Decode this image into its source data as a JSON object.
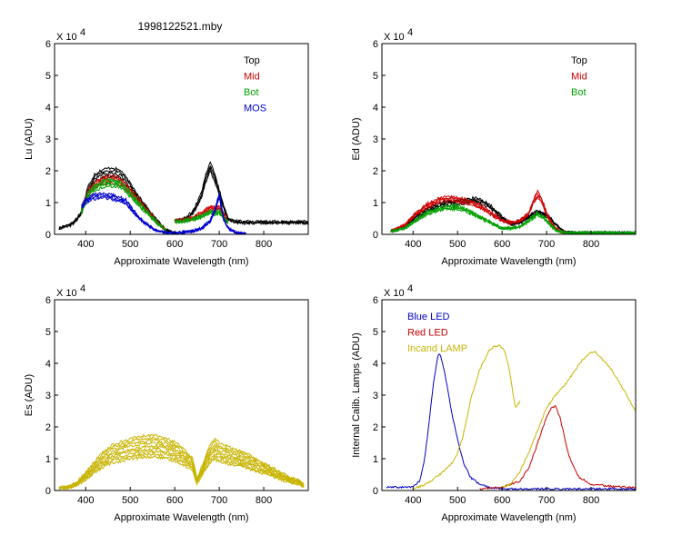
{
  "figure_title": "1998122521.mby",
  "colors": {
    "top": "#000000",
    "mid": "#d00000",
    "bot": "#00a000",
    "mos": "#0000d0",
    "blue_led": "#0000c8",
    "red_led": "#c80000",
    "lamp": "#c8b400"
  },
  "chart_data": [
    {
      "type": "line",
      "id": "lu",
      "ylabel": "Lu (ADU)",
      "xlabel": "Approximate Wavelength (nm)",
      "xlim": [
        330,
        900
      ],
      "ylim": [
        0,
        6
      ],
      "multiplier_base": "X 10",
      "multiplier_exp": "4",
      "xticks": [
        "400",
        "500",
        "600",
        "700",
        "800"
      ],
      "yticks": [
        "0",
        "1",
        "2",
        "3",
        "4",
        "5",
        "6"
      ],
      "legend": [
        {
          "label": "Top",
          "color": "#000000"
        },
        {
          "label": "Mid",
          "color": "#d00000"
        },
        {
          "label": "Bot",
          "color": "#00a000"
        },
        {
          "label": "MOS",
          "color": "#0000d0"
        }
      ],
      "series": [
        {
          "name": "Top",
          "color": "#000000",
          "segments": [
            {
              "x": [
                340,
                370,
                390,
                405,
                420,
                440,
                460,
                480,
                500,
                520,
                540,
                560,
                580,
                600
              ],
              "y": [
                0.2,
                0.35,
                0.7,
                1.5,
                1.9,
                2.05,
                2.1,
                2.0,
                1.6,
                1.2,
                0.8,
                0.45,
                0.15,
                0.05
              ]
            },
            {
              "x": [
                600,
                620,
                640,
                660,
                670,
                680,
                690,
                700,
                710,
                720,
                740,
                760,
                800,
                850,
                900
              ],
              "y": [
                0.45,
                0.5,
                0.7,
                1.3,
                1.9,
                2.25,
                1.9,
                1.4,
                0.9,
                0.5,
                0.42,
                0.4,
                0.4,
                0.4,
                0.4
              ]
            }
          ]
        },
        {
          "name": "Mid",
          "color": "#d00000",
          "segments": [
            {
              "x": [
                390,
                405,
                420,
                440,
                460,
                480,
                500,
                520,
                540,
                560,
                580
              ],
              "y": [
                0.8,
                1.4,
                1.65,
                1.8,
                1.85,
                1.75,
                1.45,
                1.1,
                0.75,
                0.4,
                0.15
              ]
            },
            {
              "x": [
                600,
                620,
                640,
                660,
                680,
                690,
                700,
                710,
                720
              ],
              "y": [
                0.45,
                0.48,
                0.55,
                0.7,
                0.9,
                0.85,
                0.9,
                0.65,
                0.45
              ]
            }
          ]
        },
        {
          "name": "Bot",
          "color": "#00a000",
          "segments": [
            {
              "x": [
                390,
                405,
                420,
                440,
                460,
                480,
                500,
                520,
                540,
                560,
                580
              ],
              "y": [
                0.75,
                1.3,
                1.55,
                1.7,
                1.72,
                1.65,
                1.35,
                1.0,
                0.7,
                0.38,
                0.14
              ]
            },
            {
              "x": [
                600,
                620,
                640,
                660,
                680,
                690,
                700,
                710,
                720
              ],
              "y": [
                0.42,
                0.45,
                0.5,
                0.6,
                0.75,
                0.7,
                0.75,
                0.55,
                0.4
              ]
            }
          ]
        },
        {
          "name": "MOS",
          "color": "#0000d0",
          "segments": [
            {
              "x": [
                390,
                400,
                415,
                440,
                460,
                480,
                490,
                500,
                520,
                540,
                560,
                580,
                600,
                640,
                660,
                680,
                690,
                700,
                710,
                720,
                740,
                760
              ],
              "y": [
                0.9,
                1.1,
                1.25,
                1.3,
                1.25,
                1.15,
                1.1,
                0.9,
                0.55,
                0.3,
                0.12,
                0.05,
                0.05,
                0.1,
                0.2,
                0.45,
                0.8,
                1.3,
                0.5,
                0.2,
                0.05,
                0.02
              ]
            }
          ]
        }
      ]
    },
    {
      "type": "line",
      "id": "ed",
      "ylabel": "Ed  (ADU)",
      "xlabel": "Approximate Wavelength (nm)",
      "xlim": [
        330,
        900
      ],
      "ylim": [
        0,
        6
      ],
      "multiplier_base": "X 10",
      "multiplier_exp": "4",
      "xticks": [
        "400",
        "500",
        "600",
        "700",
        "800"
      ],
      "yticks": [
        "0",
        "1",
        "2",
        "3",
        "4",
        "5",
        "6"
      ],
      "legend": [
        {
          "label": "Top",
          "color": "#000000"
        },
        {
          "label": "Mid",
          "color": "#d00000"
        },
        {
          "label": "Bot",
          "color": "#00a000"
        }
      ],
      "series": [
        {
          "name": "Top",
          "color": "#000000",
          "segments": [
            {
              "x": [
                350,
                380,
                400,
                430,
                460,
                480,
                500,
                520,
                540,
                560,
                580,
                600,
                620,
                640,
                660,
                680,
                700,
                720,
                740,
                760,
                800,
                850,
                900
              ],
              "y": [
                0.1,
                0.25,
                0.5,
                0.8,
                1.0,
                1.05,
                1.05,
                1.1,
                1.15,
                1.05,
                0.85,
                0.55,
                0.35,
                0.4,
                0.6,
                0.75,
                0.65,
                0.35,
                0.08,
                0.05,
                0.05,
                0.05,
                0.05
              ]
            }
          ]
        },
        {
          "name": "Mid",
          "color": "#d00000",
          "segments": [
            {
              "x": [
                350,
                380,
                400,
                430,
                460,
                480,
                500,
                520,
                540,
                560,
                580,
                600,
                620,
                640,
                660,
                670,
                680,
                690,
                700,
                710,
                720,
                740
              ],
              "y": [
                0.1,
                0.3,
                0.6,
                0.95,
                1.15,
                1.2,
                1.15,
                1.1,
                1.0,
                0.85,
                0.65,
                0.45,
                0.4,
                0.45,
                0.7,
                1.1,
                1.35,
                1.1,
                0.7,
                0.4,
                0.2,
                0.05
              ]
            }
          ]
        },
        {
          "name": "Bot",
          "color": "#00a000",
          "segments": [
            {
              "x": [
                350,
                380,
                400,
                430,
                460,
                480,
                500,
                520,
                540,
                560,
                580,
                600,
                620,
                640,
                660,
                680,
                700,
                720,
                740,
                800,
                850,
                900
              ],
              "y": [
                0.08,
                0.2,
                0.4,
                0.7,
                0.85,
                0.9,
                0.9,
                0.8,
                0.65,
                0.5,
                0.35,
                0.2,
                0.2,
                0.25,
                0.45,
                0.7,
                0.45,
                0.15,
                0.05,
                0.05,
                0.05,
                0.04
              ]
            }
          ]
        }
      ]
    },
    {
      "type": "line",
      "id": "es",
      "ylabel": "Es  (ADU)",
      "xlabel": "Approximate Wavelength (nm)",
      "xlim": [
        330,
        900
      ],
      "ylim": [
        0,
        6
      ],
      "multiplier_base": "X 10",
      "multiplier_exp": "4",
      "xticks": [
        "400",
        "500",
        "600",
        "700",
        "800"
      ],
      "yticks": [
        "0",
        "1",
        "2",
        "3",
        "4",
        "5",
        "6"
      ],
      "legend": [],
      "series": [
        {
          "name": "Es",
          "color": "#c8b400",
          "segments": [
            {
              "x": [
                340,
                360,
                380,
                400,
                420,
                440,
                460,
                480,
                500,
                520,
                540,
                560,
                580,
                600,
                620,
                640,
                650,
                660,
                670,
                680,
                690,
                700,
                720,
                740,
                760,
                780,
                800,
                820,
                840,
                860,
                880,
                890
              ],
              "y": [
                0.1,
                0.12,
                0.25,
                0.55,
                0.9,
                1.2,
                1.4,
                1.5,
                1.6,
                1.65,
                1.7,
                1.7,
                1.6,
                1.5,
                1.3,
                1.0,
                0.35,
                0.7,
                1.1,
                1.4,
                1.6,
                1.45,
                1.35,
                1.25,
                1.15,
                1.0,
                0.85,
                0.7,
                0.55,
                0.4,
                0.3,
                0.2
              ]
            }
          ]
        }
      ]
    },
    {
      "type": "line",
      "id": "lamps",
      "ylabel": "Internal Calib. Lamps (ADU)",
      "xlabel": "Approximate Wavelength (nm)",
      "xlim": [
        330,
        900
      ],
      "ylim": [
        0,
        6
      ],
      "multiplier_base": "X 10",
      "multiplier_exp": "4",
      "xticks": [
        "400",
        "500",
        "600",
        "700",
        "800"
      ],
      "yticks": [
        "0",
        "1",
        "2",
        "3",
        "4",
        "5",
        "6"
      ],
      "legend": [
        {
          "label": "Blue LED",
          "color": "#0000c8"
        },
        {
          "label": "Red LED",
          "color": "#c80000"
        },
        {
          "label": "Incand LAMP",
          "color": "#c8b400"
        }
      ],
      "series": [
        {
          "name": "Blue LED",
          "color": "#0000c8",
          "segments": [
            {
              "x": [
                340,
                380,
                400,
                415,
                425,
                435,
                445,
                455,
                460,
                465,
                475,
                485,
                495,
                505,
                515,
                530,
                550,
                570,
                600,
                650,
                700,
                800,
                900
              ],
              "y": [
                0.1,
                0.1,
                0.12,
                0.3,
                0.9,
                2.0,
                3.3,
                4.2,
                4.3,
                4.1,
                3.4,
                2.6,
                1.9,
                1.3,
                0.8,
                0.4,
                0.2,
                0.1,
                0.05,
                0.05,
                0.05,
                0.05,
                0.05
              ]
            }
          ]
        },
        {
          "name": "Red LED",
          "color": "#c80000",
          "segments": [
            {
              "x": [
                550,
                600,
                640,
                660,
                680,
                700,
                710,
                720,
                730,
                740,
                750,
                770,
                800,
                850,
                900
              ],
              "y": [
                0.05,
                0.1,
                0.3,
                0.7,
                1.5,
                2.3,
                2.6,
                2.65,
                2.3,
                1.7,
                1.1,
                0.45,
                0.2,
                0.12,
                0.1
              ]
            }
          ]
        },
        {
          "name": "Incand LAMP",
          "color": "#c8b400",
          "segments": [
            {
              "x": [
                400,
                430,
                460,
                490,
                500,
                510,
                520,
                530,
                550,
                570,
                585,
                595,
                605,
                615,
                625,
                630,
                640
              ],
              "y": [
                0.05,
                0.2,
                0.5,
                0.9,
                1.2,
                1.6,
                2.2,
                2.9,
                3.8,
                4.4,
                4.55,
                4.55,
                4.4,
                3.9,
                3.0,
                2.6,
                2.8
              ]
            },
            {
              "x": [
                600,
                620,
                640,
                660,
                680,
                700,
                720,
                740,
                760,
                780,
                800,
                810,
                820,
                840,
                860,
                880,
                900
              ],
              "y": [
                0.1,
                0.2,
                0.6,
                1.2,
                1.9,
                2.6,
                3.0,
                3.3,
                3.7,
                4.1,
                4.35,
                4.35,
                4.2,
                3.9,
                3.5,
                3.0,
                2.5
              ]
            }
          ]
        }
      ]
    }
  ]
}
